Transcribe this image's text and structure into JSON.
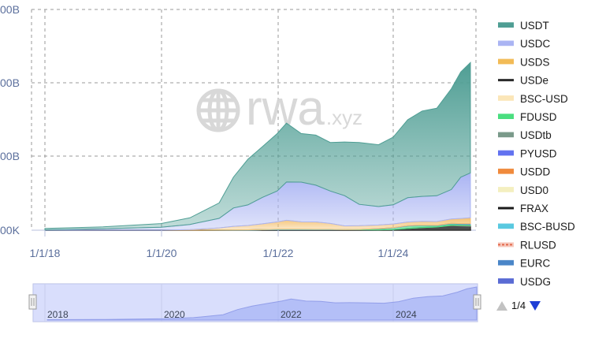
{
  "chart_data": {
    "type": "area",
    "stacked": true,
    "title": "",
    "xlabel": "",
    "ylabel": "",
    "y_ticks": [
      "00B",
      "00B",
      "00B",
      "00K"
    ],
    "x_ticks": [
      "1/1/18",
      "1/1/20",
      "1/1/22",
      "1/1/24"
    ],
    "grid": true,
    "legend_position": "right",
    "legend_page": "1/4",
    "navigator_labels": [
      "2018",
      "2020",
      "2022",
      "2024"
    ],
    "watermark": "rwa.xyz",
    "ylim": [
      0,
      300
    ],
    "x_dates": [
      "2018-01-01",
      "2019-01-01",
      "2020-01-01",
      "2020-07-01",
      "2021-01-01",
      "2021-04-01",
      "2021-07-01",
      "2021-10-01",
      "2022-01-01",
      "2022-03-01",
      "2022-06-01",
      "2022-09-01",
      "2022-12-01",
      "2023-03-01",
      "2023-06-01",
      "2023-10-01",
      "2024-01-01",
      "2024-04-01",
      "2024-07-01",
      "2024-10-01",
      "2025-01-01",
      "2025-03-01",
      "2025-05-01"
    ],
    "series": [
      {
        "name": "FRAX",
        "color": "#1b1b1b",
        "values": [
          0,
          0,
          0,
          0,
          0.1,
          0.2,
          0.3,
          0.5,
          0.8,
          0.9,
          0.9,
          0.8,
          0.8,
          0.7,
          0.5,
          0.4,
          0.3,
          0.3,
          0.3,
          0.3,
          0.3,
          0.3,
          0.3
        ]
      },
      {
        "name": "USDe",
        "color": "#3a3a3a",
        "values": [
          0,
          0,
          0,
          0,
          0,
          0,
          0,
          0,
          0,
          0,
          0,
          0,
          0,
          0,
          0,
          0,
          0.4,
          2.0,
          3.2,
          4.0,
          6.0,
          5.4,
          4.9
        ]
      },
      {
        "name": "USDtb",
        "color": "#7a9a8a",
        "values": [
          0,
          0,
          0,
          0,
          0,
          0,
          0,
          0,
          0,
          0,
          0,
          0,
          0,
          0,
          0,
          0,
          0,
          0,
          0,
          0,
          0.5,
          1.2,
          1.5
        ]
      },
      {
        "name": "FDUSD",
        "color": "#4ade80",
        "values": [
          0,
          0,
          0,
          0,
          0,
          0,
          0,
          0,
          0,
          0,
          0,
          0,
          0,
          0,
          0.5,
          1.5,
          2.5,
          3.5,
          3.0,
          2.0,
          2.0,
          1.5,
          1.3
        ]
      },
      {
        "name": "PYUSD",
        "color": "#6272f0",
        "values": [
          0,
          0,
          0,
          0,
          0,
          0,
          0,
          0,
          0,
          0,
          0,
          0,
          0,
          0,
          0,
          0.2,
          0.3,
          0.3,
          0.5,
          0.5,
          0.5,
          0.6,
          0.9
        ]
      },
      {
        "name": "BSC-BUSD",
        "color": "#59c9e0",
        "values": [
          0,
          0,
          0,
          0,
          0,
          0,
          0.1,
          0.2,
          0.5,
          0.6,
          0.5,
          0.4,
          0.4,
          0.2,
          0.1,
          0,
          0,
          0,
          0,
          0,
          0,
          0,
          0
        ]
      },
      {
        "name": "USDS",
        "color": "#f4c271",
        "values": [
          0,
          0,
          0,
          0.8,
          3,
          5,
          6,
          8,
          10,
          12,
          10,
          10,
          8,
          5,
          5,
          5,
          5,
          5,
          5,
          5,
          6,
          7,
          8
        ]
      },
      {
        "name": "USDC",
        "color": "#aab4f3",
        "values": [
          0.5,
          2,
          4,
          7,
          13,
          25,
          28,
          36,
          42,
          52,
          54,
          50,
          44,
          41,
          29,
          25,
          26,
          33,
          34,
          35,
          40,
          56,
          61
        ]
      },
      {
        "name": "USDT",
        "color": "#4f9e94",
        "values": [
          2,
          2.5,
          5,
          9,
          21,
          42,
          62,
          69,
          78,
          80,
          66,
          68,
          66,
          73,
          84,
          84,
          92,
          106,
          116,
          119,
          137,
          143,
          150
        ]
      }
    ]
  },
  "legend": [
    {
      "label": "USDT",
      "color": "#4f9e94",
      "style": "area"
    },
    {
      "label": "USDC",
      "color": "#aab4f3",
      "style": "area"
    },
    {
      "label": "USDS",
      "color": "#f2bb56",
      "style": "area"
    },
    {
      "label": "USDe",
      "color": "#2a2a2a",
      "style": "line"
    },
    {
      "label": "BSC-USD",
      "color": "#fbe6b8",
      "style": "area"
    },
    {
      "label": "FDUSD",
      "color": "#4ade80",
      "style": "area"
    },
    {
      "label": "USDtb",
      "color": "#7a9a8a",
      "style": "area"
    },
    {
      "label": "PYUSD",
      "color": "#6272f0",
      "style": "area"
    },
    {
      "label": "USDD",
      "color": "#f08a3c",
      "style": "area"
    },
    {
      "label": "USD0",
      "color": "#f4efc0",
      "style": "area"
    },
    {
      "label": "FRAX",
      "color": "#1b1b1b",
      "style": "line"
    },
    {
      "label": "BSC-BUSD",
      "color": "#59c9e0",
      "style": "area"
    },
    {
      "label": "RLUSD",
      "color": "#e4674b",
      "style": "dashed"
    },
    {
      "label": "EURC",
      "color": "#4a86c8",
      "style": "area"
    },
    {
      "label": "USDG",
      "color": "#5a6bd4",
      "style": "area"
    }
  ],
  "navigator_series": [
    2.5,
    4.5,
    9,
    17,
    37,
    72,
    96,
    114,
    131,
    145,
    131,
    129,
    119,
    120,
    119,
    116,
    127,
    151,
    162,
    166,
    192,
    215,
    228
  ]
}
